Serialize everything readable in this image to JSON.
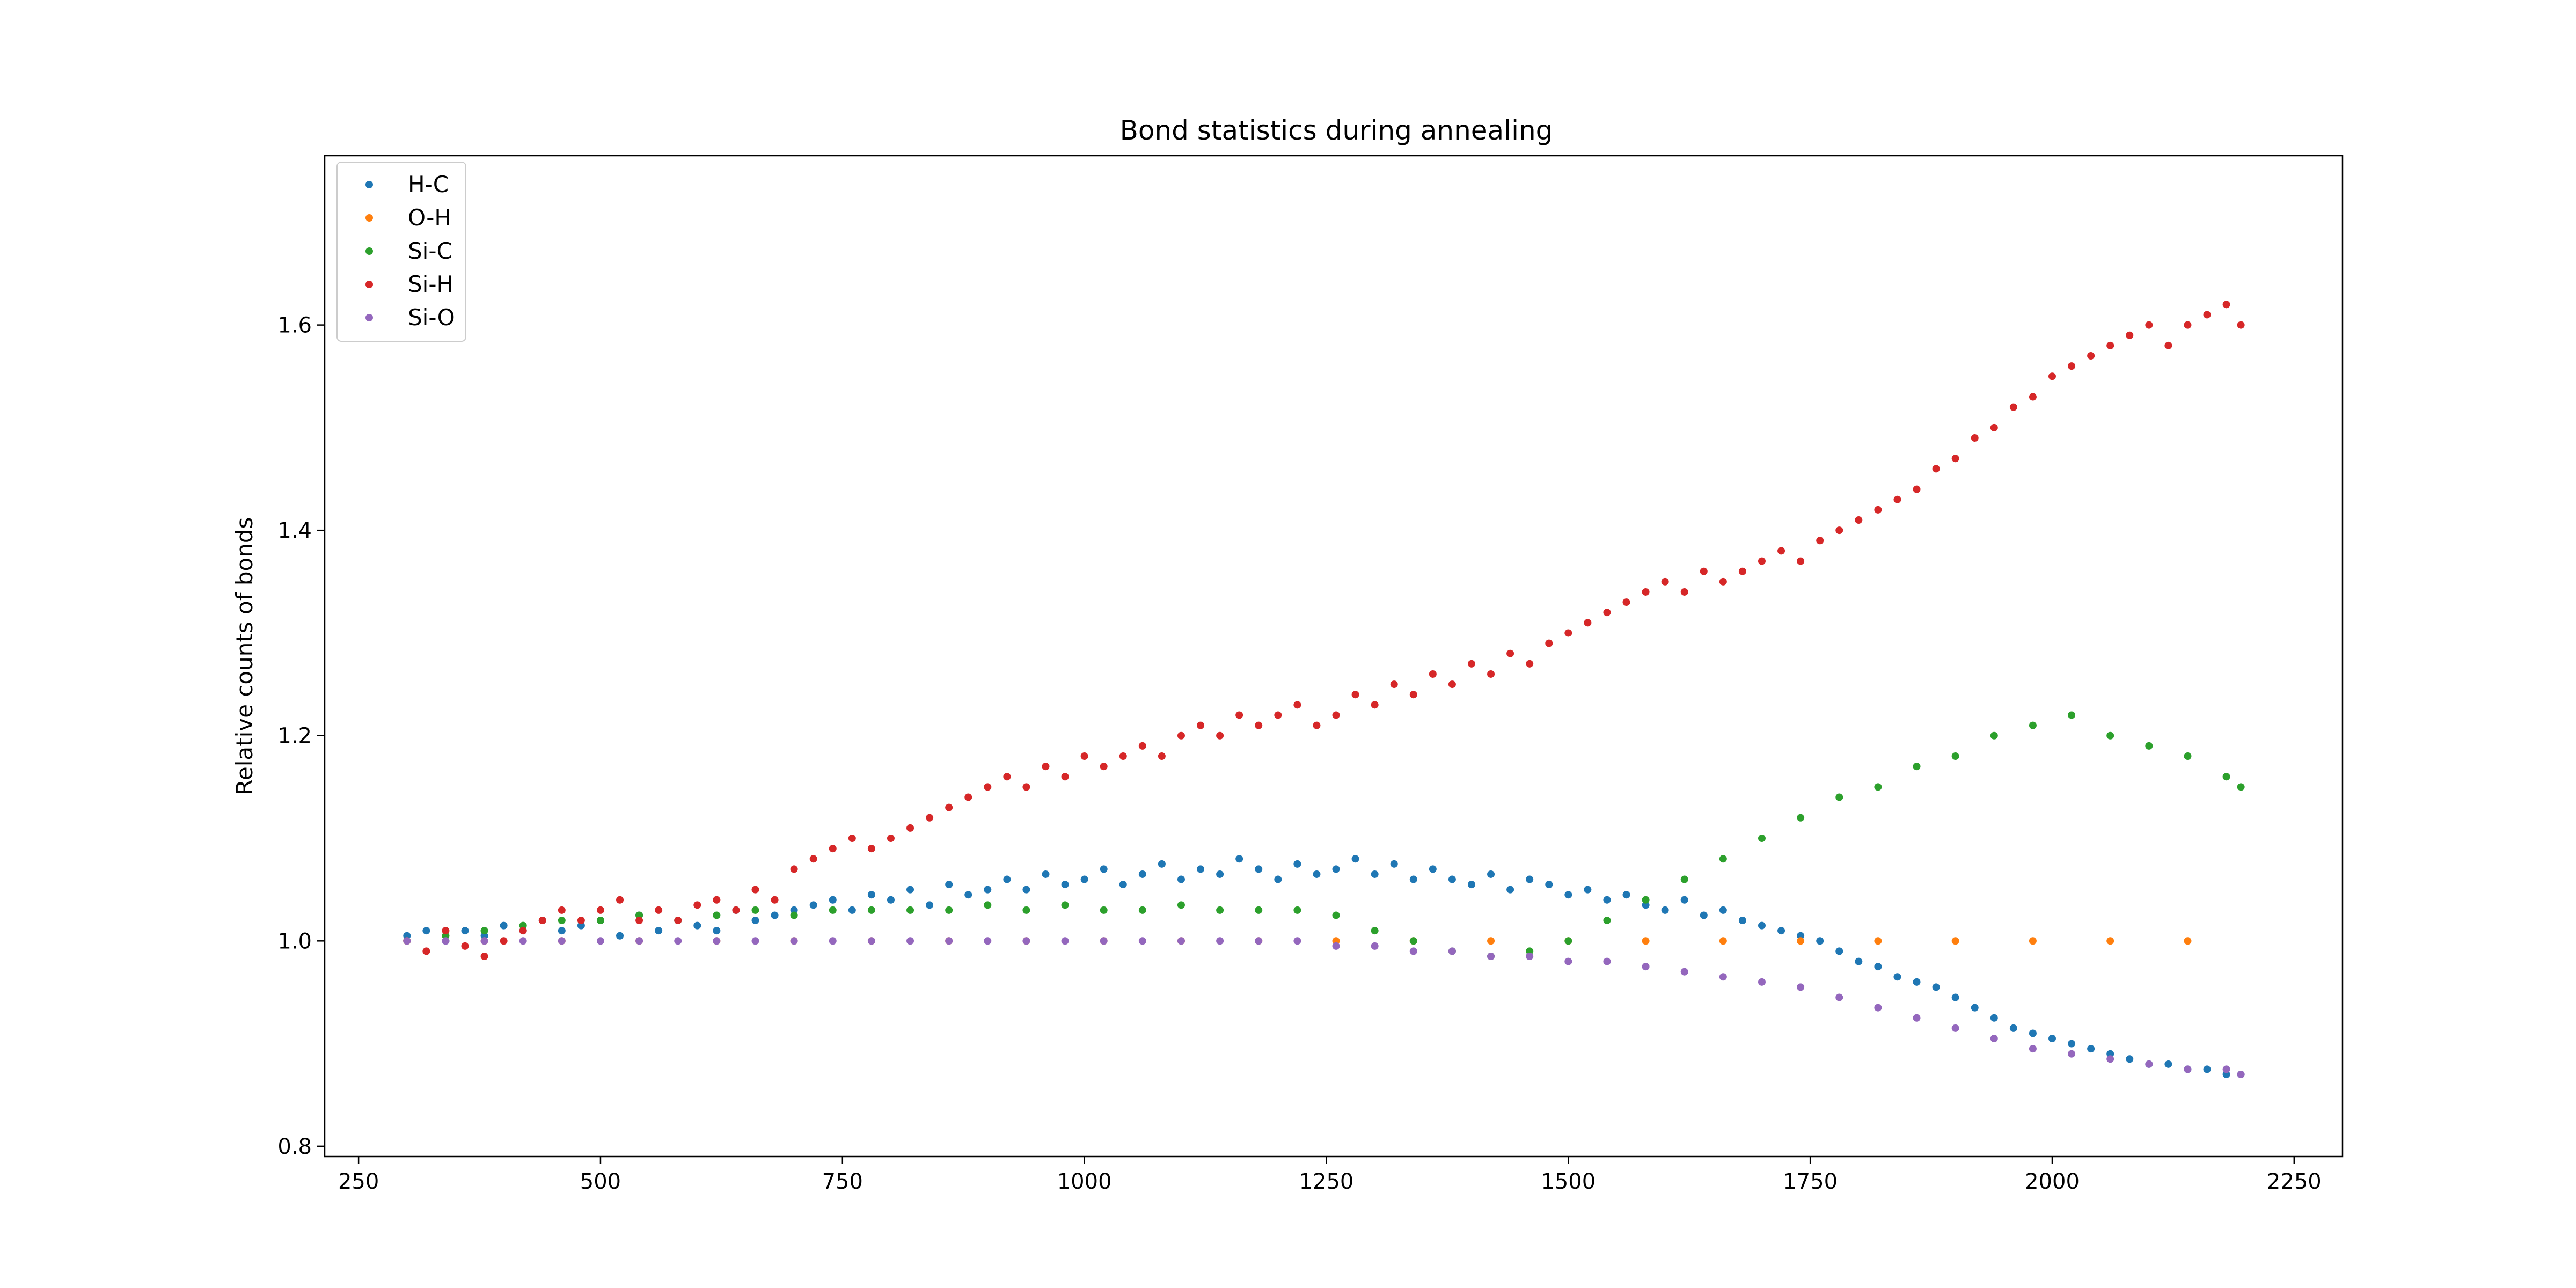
{
  "chart_data": {
    "type": "scatter",
    "title": "Bond statistics during annealing",
    "xlabel": "",
    "ylabel": "Relative counts of bonds",
    "xlim": [
      215,
      2300
    ],
    "ylim": [
      0.79,
      1.765
    ],
    "xticks": [
      250,
      500,
      750,
      1000,
      1250,
      1500,
      1750,
      2000,
      2250
    ],
    "yticks": [
      0.8,
      1.0,
      1.2,
      1.4,
      1.6
    ],
    "grid": false,
    "legend_position": "top-left",
    "series": [
      {
        "name": "H-C",
        "color": "#1f77b4",
        "x": [
          300,
          320,
          340,
          360,
          380,
          400,
          420,
          440,
          460,
          480,
          500,
          520,
          540,
          560,
          580,
          600,
          620,
          640,
          660,
          680,
          700,
          720,
          740,
          760,
          780,
          800,
          820,
          840,
          860,
          880,
          900,
          920,
          940,
          960,
          980,
          1000,
          1020,
          1040,
          1060,
          1080,
          1100,
          1120,
          1140,
          1160,
          1180,
          1200,
          1220,
          1240,
          1260,
          1280,
          1300,
          1320,
          1340,
          1360,
          1380,
          1400,
          1420,
          1440,
          1460,
          1480,
          1500,
          1520,
          1540,
          1560,
          1580,
          1600,
          1620,
          1640,
          1660,
          1680,
          1700,
          1720,
          1740,
          1760,
          1780,
          1800,
          1820,
          1840,
          1860,
          1880,
          1900,
          1920,
          1940,
          1960,
          1980,
          2000,
          2020,
          2040,
          2060,
          2080,
          2100,
          2120,
          2140,
          2160,
          2180,
          2195
        ],
        "y": [
          1.005,
          1.01,
          1.0,
          1.01,
          1.005,
          1.015,
          1.01,
          1.02,
          1.01,
          1.015,
          1.02,
          1.005,
          1.025,
          1.01,
          1.02,
          1.015,
          1.01,
          1.03,
          1.02,
          1.025,
          1.03,
          1.035,
          1.04,
          1.03,
          1.045,
          1.04,
          1.05,
          1.035,
          1.055,
          1.045,
          1.05,
          1.06,
          1.05,
          1.065,
          1.055,
          1.06,
          1.07,
          1.055,
          1.065,
          1.075,
          1.06,
          1.07,
          1.065,
          1.08,
          1.07,
          1.06,
          1.075,
          1.065,
          1.07,
          1.08,
          1.065,
          1.075,
          1.06,
          1.07,
          1.06,
          1.055,
          1.065,
          1.05,
          1.06,
          1.055,
          1.045,
          1.05,
          1.04,
          1.045,
          1.035,
          1.03,
          1.04,
          1.025,
          1.03,
          1.02,
          1.015,
          1.01,
          1.005,
          1.0,
          0.99,
          0.98,
          0.975,
          0.965,
          0.96,
          0.955,
          0.945,
          0.935,
          0.925,
          0.915,
          0.91,
          0.905,
          0.9,
          0.895,
          0.89,
          0.885,
          0.88,
          0.88,
          0.875,
          0.875,
          0.87,
          0.87
        ]
      },
      {
        "name": "O-H",
        "color": "#ff7f0e",
        "x": [
          300,
          380,
          460,
          540,
          620,
          700,
          780,
          860,
          940,
          1020,
          1100,
          1180,
          1260,
          1340,
          1420,
          1500,
          1580,
          1660,
          1740,
          1820,
          1900,
          1980,
          2060,
          2140
        ],
        "y": [
          1.0,
          1.0,
          1.0,
          1.0,
          1.0,
          1.0,
          1.0,
          1.0,
          1.0,
          1.0,
          1.0,
          1.0,
          1.0,
          1.0,
          1.0,
          1.0,
          1.0,
          1.0,
          1.0,
          1.0,
          1.0,
          1.0,
          1.0,
          1.0
        ]
      },
      {
        "name": "Si-C",
        "color": "#2ca02c",
        "x": [
          300,
          340,
          380,
          420,
          460,
          500,
          540,
          580,
          620,
          660,
          700,
          740,
          780,
          820,
          860,
          900,
          940,
          980,
          1020,
          1060,
          1100,
          1140,
          1180,
          1220,
          1260,
          1300,
          1340,
          1380,
          1420,
          1460,
          1500,
          1540,
          1580,
          1620,
          1660,
          1700,
          1740,
          1780,
          1820,
          1860,
          1900,
          1940,
          1980,
          2020,
          2060,
          2100,
          2140,
          2180,
          2195
        ],
        "y": [
          1.0,
          1.005,
          1.01,
          1.015,
          1.02,
          1.02,
          1.025,
          1.02,
          1.025,
          1.03,
          1.025,
          1.03,
          1.03,
          1.03,
          1.03,
          1.035,
          1.03,
          1.035,
          1.03,
          1.03,
          1.035,
          1.03,
          1.03,
          1.03,
          1.025,
          1.01,
          1.0,
          0.99,
          0.985,
          0.99,
          1.0,
          1.02,
          1.04,
          1.06,
          1.08,
          1.1,
          1.12,
          1.14,
          1.15,
          1.17,
          1.18,
          1.2,
          1.21,
          1.22,
          1.2,
          1.19,
          1.18,
          1.16,
          1.15
        ]
      },
      {
        "name": "Si-H",
        "color": "#d62728",
        "x": [
          300,
          320,
          340,
          360,
          380,
          400,
          420,
          440,
          460,
          480,
          500,
          520,
          540,
          560,
          580,
          600,
          620,
          640,
          660,
          680,
          700,
          720,
          740,
          760,
          780,
          800,
          820,
          840,
          860,
          880,
          900,
          920,
          940,
          960,
          980,
          1000,
          1020,
          1040,
          1060,
          1080,
          1100,
          1120,
          1140,
          1160,
          1180,
          1200,
          1220,
          1240,
          1260,
          1280,
          1300,
          1320,
          1340,
          1360,
          1380,
          1400,
          1420,
          1440,
          1460,
          1480,
          1500,
          1520,
          1540,
          1560,
          1580,
          1600,
          1620,
          1640,
          1660,
          1680,
          1700,
          1720,
          1740,
          1760,
          1780,
          1800,
          1820,
          1840,
          1860,
          1880,
          1900,
          1920,
          1940,
          1960,
          1980,
          2000,
          2020,
          2040,
          2060,
          2080,
          2100,
          2120,
          2140,
          2160,
          2180,
          2195
        ],
        "y": [
          1.0,
          0.99,
          1.01,
          0.995,
          0.985,
          1.0,
          1.01,
          1.02,
          1.03,
          1.02,
          1.03,
          1.04,
          1.02,
          1.03,
          1.02,
          1.035,
          1.04,
          1.03,
          1.05,
          1.04,
          1.07,
          1.08,
          1.09,
          1.1,
          1.09,
          1.1,
          1.11,
          1.12,
          1.13,
          1.14,
          1.15,
          1.16,
          1.15,
          1.17,
          1.16,
          1.18,
          1.17,
          1.18,
          1.19,
          1.18,
          1.2,
          1.21,
          1.2,
          1.22,
          1.21,
          1.22,
          1.23,
          1.21,
          1.22,
          1.24,
          1.23,
          1.25,
          1.24,
          1.26,
          1.25,
          1.27,
          1.26,
          1.28,
          1.27,
          1.29,
          1.3,
          1.31,
          1.32,
          1.33,
          1.34,
          1.35,
          1.34,
          1.36,
          1.35,
          1.36,
          1.37,
          1.38,
          1.37,
          1.39,
          1.4,
          1.41,
          1.42,
          1.43,
          1.44,
          1.46,
          1.47,
          1.49,
          1.5,
          1.52,
          1.53,
          1.55,
          1.56,
          1.57,
          1.58,
          1.59,
          1.6,
          1.58,
          1.6,
          1.61,
          1.62,
          1.6
        ]
      },
      {
        "name": "Si-O",
        "color": "#9467bd",
        "x": [
          300,
          340,
          380,
          420,
          460,
          500,
          540,
          580,
          620,
          660,
          700,
          740,
          780,
          820,
          860,
          900,
          940,
          980,
          1020,
          1060,
          1100,
          1140,
          1180,
          1220,
          1260,
          1300,
          1340,
          1380,
          1420,
          1460,
          1500,
          1540,
          1580,
          1620,
          1660,
          1700,
          1740,
          1780,
          1820,
          1860,
          1900,
          1940,
          1980,
          2020,
          2060,
          2100,
          2140,
          2180,
          2195
        ],
        "y": [
          1.0,
          1.0,
          1.0,
          1.0,
          1.0,
          1.0,
          1.0,
          1.0,
          1.0,
          1.0,
          1.0,
          1.0,
          1.0,
          1.0,
          1.0,
          1.0,
          1.0,
          1.0,
          1.0,
          1.0,
          1.0,
          1.0,
          1.0,
          1.0,
          0.995,
          0.995,
          0.99,
          0.99,
          0.985,
          0.985,
          0.98,
          0.98,
          0.975,
          0.97,
          0.965,
          0.96,
          0.955,
          0.945,
          0.935,
          0.925,
          0.915,
          0.905,
          0.895,
          0.89,
          0.885,
          0.88,
          0.875,
          0.875,
          0.87
        ]
      }
    ]
  }
}
